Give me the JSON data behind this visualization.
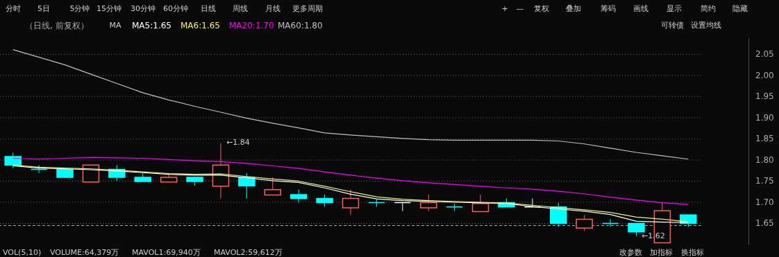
{
  "chart_data": {
    "type": "candlestick",
    "title": "（日线, 前复权）",
    "categories": [
      null,
      null,
      null,
      null,
      null,
      null,
      null,
      null,
      null,
      null,
      null,
      null,
      null,
      null,
      null,
      null,
      null,
      null,
      null,
      null,
      null,
      null,
      null,
      null,
      null,
      null,
      null
    ],
    "ohlc": [
      [
        1.808,
        1.817,
        1.78,
        1.788
      ],
      [
        1.778,
        1.788,
        1.769,
        1.778
      ],
      [
        1.778,
        1.778,
        1.759,
        1.759
      ],
      [
        1.748,
        1.788,
        1.748,
        1.788
      ],
      [
        1.778,
        1.788,
        1.749,
        1.759
      ],
      [
        1.759,
        1.769,
        1.749,
        1.749
      ],
      [
        1.748,
        1.769,
        1.748,
        1.759
      ],
      [
        1.759,
        1.759,
        1.739,
        1.749
      ],
      [
        1.738,
        1.84,
        1.709,
        1.788
      ],
      [
        1.759,
        1.769,
        1.709,
        1.739
      ],
      [
        1.717,
        1.759,
        1.717,
        1.73
      ],
      [
        1.718,
        1.73,
        1.699,
        1.709
      ],
      [
        1.709,
        1.718,
        1.689,
        1.699
      ],
      [
        1.687,
        1.73,
        1.67,
        1.709
      ],
      [
        1.699,
        1.707,
        1.689,
        1.699
      ],
      [
        1.699,
        1.699,
        1.679,
        1.699
      ],
      [
        1.687,
        1.718,
        1.679,
        1.699
      ],
      [
        1.689,
        1.697,
        1.679,
        1.689
      ],
      [
        1.678,
        1.718,
        1.678,
        1.697
      ],
      [
        1.699,
        1.709,
        1.689,
        1.689
      ],
      [
        1.689,
        1.709,
        1.689,
        1.689
      ],
      [
        1.689,
        1.699,
        1.642,
        1.65
      ],
      [
        1.639,
        1.67,
        1.632,
        1.66
      ],
      [
        1.65,
        1.66,
        1.642,
        1.65
      ],
      [
        1.65,
        1.65,
        1.62,
        1.63
      ],
      [
        1.604,
        1.7,
        1.604,
        1.68
      ],
      [
        1.67,
        1.67,
        1.642,
        1.65
      ]
    ],
    "colors": [
      "#00ffff",
      "#00ffff",
      "#00ffff",
      "#ff5c5c",
      "#00ffff",
      "#00ffff",
      "#ff5c5c",
      "#00ffff",
      "#ff5c5c",
      "#00ffff",
      "#ff5c5c",
      "#00ffff",
      "#00ffff",
      "#ff5c5c",
      "#00ffff",
      "#ffffff",
      "#ff5c5c",
      "#00ffff",
      "#ff5c5c",
      "#00ffff",
      "#ffffff",
      "#00ffff",
      "#ff5c5c",
      "#00ffff",
      "#00ffff",
      "#ff5c5c",
      "#00ffff"
    ],
    "series": [
      {
        "type": "line",
        "name": "MA5:1.65",
        "color": "#ffffff",
        "values": [
          1.786,
          1.781,
          1.779,
          1.777,
          1.774,
          1.77,
          1.766,
          1.764,
          1.764,
          1.758,
          1.751,
          1.747,
          1.734,
          1.719,
          1.708,
          1.704,
          1.702,
          1.7,
          1.699,
          1.697,
          1.69,
          1.684,
          1.679,
          1.671,
          1.655,
          1.653,
          1.652
        ]
      },
      {
        "type": "line",
        "name": "MA6:1.65",
        "color": "#f0f080",
        "values": [
          1.788,
          1.783,
          1.781,
          1.779,
          1.776,
          1.772,
          1.768,
          1.766,
          1.767,
          1.761,
          1.755,
          1.75,
          1.738,
          1.725,
          1.713,
          1.707,
          1.704,
          1.702,
          1.7,
          1.698,
          1.693,
          1.687,
          1.682,
          1.676,
          1.665,
          1.66,
          1.654
        ]
      },
      {
        "type": "line",
        "name": "MA20:1.70",
        "color": "#ff00ff",
        "values": [
          1.804,
          1.802,
          1.804,
          1.806,
          1.805,
          1.804,
          1.801,
          1.798,
          1.796,
          1.792,
          1.786,
          1.78,
          1.772,
          1.764,
          1.757,
          1.751,
          1.746,
          1.742,
          1.738,
          1.734,
          1.731,
          1.726,
          1.72,
          1.712,
          1.705,
          1.699,
          1.695
        ]
      },
      {
        "type": "line",
        "name": "MA60:1.80",
        "color": "#c0c0c0",
        "values": [
          2.061,
          2.043,
          2.025,
          2.003,
          1.981,
          1.959,
          1.942,
          1.927,
          1.913,
          1.899,
          1.887,
          1.876,
          1.864,
          1.859,
          1.855,
          1.851,
          1.848,
          1.847,
          1.847,
          1.847,
          1.847,
          1.845,
          1.838,
          1.828,
          1.818,
          1.81,
          1.802
        ]
      }
    ],
    "ylim": [
      1.6,
      2.09
    ],
    "yticks": [
      1.65,
      {
        "value": 1.7,
        "label": "1.70"
      },
      1.75,
      {
        "value": 1.8,
        "label": "1.80"
      },
      1.85,
      {
        "value": 1.9,
        "label": "1.90"
      },
      1.95,
      {
        "value": 2.0,
        "label": "2.00"
      },
      2.05
    ],
    "tick_labels": "y",
    "grid": "y",
    "legend": "top left",
    "ref_lines": [
      {
        "axis": "y",
        "value": 1.645,
        "color": "#aaaaaa",
        "line_style": "dashed"
      }
    ],
    "annotations": [
      "分时",
      "5日",
      "5分钟",
      "15分钟",
      "30分钟",
      "60分钟",
      "日线",
      "周线",
      "月线",
      "更多周期",
      "+",
      "—",
      "复权",
      "叠加",
      "筹码",
      "画线",
      "显示",
      "简约",
      "隐藏",
      "可转债",
      "设置均线",
      "MA",
      "VOL(5,10)",
      "VOLUME:64,379万",
      "MAVOL1:69,940万",
      "MAVOL2:59,612万",
      "改参数",
      "加指标",
      "换指标",
      "←1.84",
      "←1.62"
    ]
  }
}
